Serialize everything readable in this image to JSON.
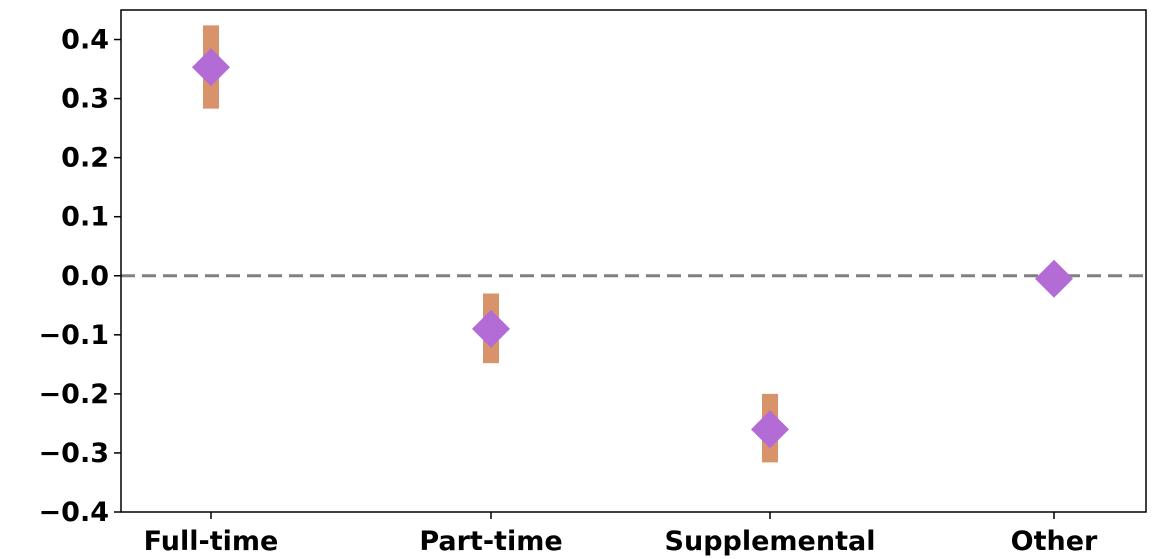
{
  "chart_data": {
    "type": "scatter",
    "title": "",
    "xlabel": "",
    "ylabel": "",
    "categories": [
      "Full-time",
      "Part-time",
      "Supplemental",
      "Other"
    ],
    "series": [
      {
        "values": [
          0.353,
          -0.09,
          -0.26,
          -0.005
        ],
        "ci_low": [
          0.283,
          -0.148,
          -0.316,
          -0.005
        ],
        "ci_high": [
          0.424,
          -0.03,
          -0.2,
          -0.005
        ],
        "marker": "diamond",
        "marker_color": "#b36bd6",
        "errorbar_color": "#d9936a"
      }
    ],
    "ylim": [
      -0.4,
      0.45
    ],
    "yticks": [
      0.4,
      0.3,
      0.2,
      0.1,
      0.0,
      -0.1,
      -0.2,
      -0.3,
      -0.4
    ],
    "ytick_labels": [
      "0.4",
      "0.3",
      "0.2",
      "0.1",
      "0.0",
      "−0.1",
      "−0.2",
      "−0.3",
      "−0.4"
    ],
    "reference_line": {
      "y": 0,
      "style": "dashed",
      "color": "#808080"
    },
    "grid": false,
    "legend": "none"
  }
}
